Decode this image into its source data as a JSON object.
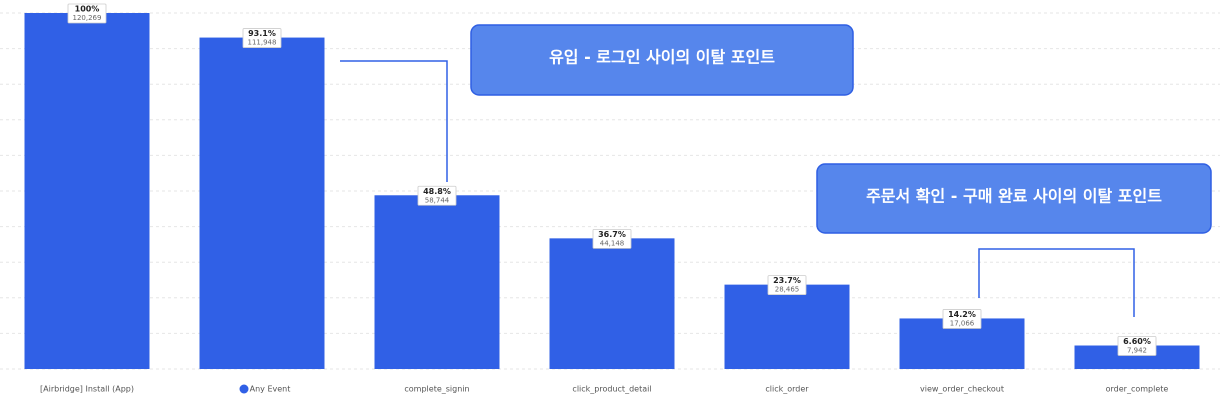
{
  "chart_data": {
    "type": "bar",
    "categories": [
      "[Airbridge] Install (App)",
      "Any Event",
      "complete_signin",
      "click_product_detail",
      "click_order",
      "view_order_checkout",
      "order_complete"
    ],
    "values": [
      100,
      93.1,
      48.8,
      36.7,
      23.7,
      14.2,
      6.6
    ],
    "value_labels": [
      "100%",
      "93.1%",
      "48.8%",
      "36.7%",
      "23.7%",
      "14.2%",
      "6.60%"
    ],
    "counts": [
      120269,
      111948,
      58744,
      44148,
      28465,
      17066,
      7942
    ],
    "count_labels": [
      "120,269",
      "111,948",
      "58,744",
      "44,148",
      "28,465",
      "17,066",
      "7,942"
    ],
    "color": "#3060e6",
    "ylim": [
      0,
      100
    ],
    "yticks": [
      0,
      10,
      20,
      30,
      40,
      50,
      60,
      70,
      80,
      90,
      100
    ],
    "grid": true,
    "annotations": [
      {
        "text": "유입 - 로그인 사이의 이탈 포인트"
      },
      {
        "text": "주문서 확인 - 구매 완료 사이의 이탈 포인트"
      }
    ]
  }
}
